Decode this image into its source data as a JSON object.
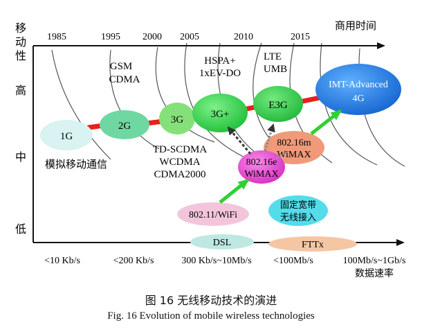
{
  "yaxis": {
    "title_chars": [
      "移",
      "动",
      "性"
    ],
    "levels": {
      "high": "高",
      "mid": "中",
      "low": "低"
    }
  },
  "timeline": {
    "years": [
      "1985",
      "1995",
      "2000",
      "2005",
      "2010",
      "2015"
    ],
    "label": "商用时间"
  },
  "xaxis": {
    "rates": [
      "<10 Kb/s",
      "<200 Kb/s",
      "300 Kb/s~10Mb/s",
      "<100Mb/s",
      "100Mb/s~1Gb/s"
    ],
    "label": "数据速率"
  },
  "nodes": {
    "g1": "1G",
    "g2": "2G",
    "g3": "3G",
    "g3plus": "3G+",
    "e3g": "E3G",
    "imt_line1": "IMT-Advanced",
    "imt_line2": "4G",
    "wimax16m_line1": "802.16m",
    "wimax16m_line2": "WiMAX",
    "wimax16e_line1": "802.16e",
    "wimax16e_line2": "WiMAX",
    "wifi": "802.11/WiFi",
    "fixed_line1": "固定宽带",
    "fixed_line2": "无线接入",
    "dsl": "DSL",
    "fttx": "FTTx"
  },
  "labels": {
    "analog": "模拟移动通信",
    "gsm": "GSM",
    "cdma": "CDMA",
    "hspa": "HSPA+",
    "evdo": "1xEV-DO",
    "lte": "LTE",
    "umb": "UMB",
    "td": "TD-SCDMA",
    "wcdma": "WCDMA",
    "cdma2000": "CDMA2000"
  },
  "caption": {
    "zh": "图 16    无线移动技术的演进",
    "en": "Fig. 16    Evolution of mobile wireless technologies"
  },
  "colors": {
    "g1": "#d9f2f2",
    "g2": "#6fd7a2",
    "g3": "#86e07a",
    "g3plus": "#2fcf48",
    "e3g": "#33c94d",
    "imt": "#1e7fe0",
    "wimax16m": "#f09a7a",
    "wimax16e": "#e84fd4",
    "wifi": "#f3c5dd",
    "fixed": "#54dcea",
    "dsl": "#bfe8e2",
    "fttx": "#f5c6a4",
    "red_path": "#e8201c",
    "green_arrow": "#2fd033"
  }
}
